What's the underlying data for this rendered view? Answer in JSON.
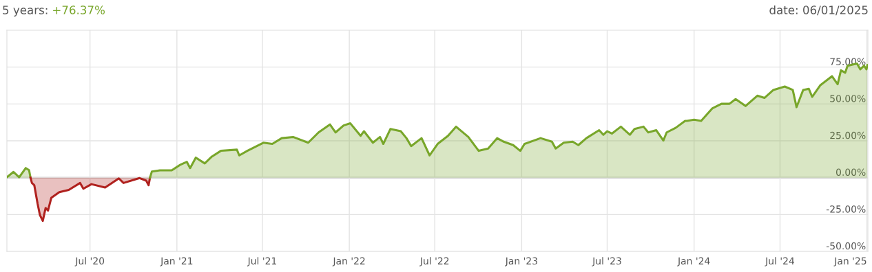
{
  "chart_data": {
    "type": "area",
    "title": "5 years:",
    "subtitle": "+76.37%",
    "annotations": [
      "date: 06/01/2025"
    ],
    "series": [
      {
        "color": "#78a62a",
        "x": [
          "2020-01-07",
          "2020-01-21",
          "2020-02-02",
          "2020-02-16",
          "2020-02-23",
          "2020-02-26"
        ],
        "values": [
          0.3,
          3.9,
          0.3,
          6.5,
          5.1,
          0
        ]
      },
      {
        "color": "#b0211e",
        "x": [
          "2020-02-26",
          "2020-02-29",
          "2020-03-05",
          "2020-03-12",
          "2020-03-17",
          "2020-03-23",
          "2020-03-29",
          "2020-04-03",
          "2020-04-10",
          "2020-04-27",
          "2020-05-17",
          "2020-06-10",
          "2020-06-17",
          "2020-07-04",
          "2020-08-02",
          "2020-08-31",
          "2020-09-10",
          "2020-10-14",
          "2020-10-28",
          "2020-11-02",
          "2020-11-05"
        ],
        "values": [
          0,
          -3.6,
          -5.1,
          -17.6,
          -25.4,
          -29.3,
          -20.6,
          -22.3,
          -13.7,
          -9.8,
          -8.3,
          -3.6,
          -7.5,
          -4.4,
          -6.7,
          -0.5,
          -3.6,
          -0.3,
          -2.0,
          -5.1,
          0
        ]
      },
      {
        "color": "#78a62a",
        "x": [
          "2020-11-05",
          "2020-11-09",
          "2020-11-26",
          "2020-12-21",
          "2021-01-09",
          "2021-01-22",
          "2021-01-29",
          "2021-02-10",
          "2021-03-01",
          "2021-03-16",
          "2021-04-04",
          "2021-05-08",
          "2021-05-13",
          "2021-05-30",
          "2021-07-03",
          "2021-07-22",
          "2021-08-11",
          "2021-09-04",
          "2021-10-06",
          "2021-10-28",
          "2021-11-21",
          "2021-12-03",
          "2021-12-20",
          "2022-01-03",
          "2022-01-25",
          "2022-02-01",
          "2022-02-20",
          "2022-03-07",
          "2022-03-14",
          "2022-03-29",
          "2022-04-20",
          "2022-05-02",
          "2022-05-12",
          "2022-06-03",
          "2022-06-20",
          "2022-07-07",
          "2022-07-29",
          "2022-08-15",
          "2022-09-10",
          "2022-10-02",
          "2022-10-22",
          "2022-11-10",
          "2022-11-24",
          "2022-12-14",
          "2022-12-29",
          "2023-01-07",
          "2023-02-10",
          "2023-03-06",
          "2023-03-14",
          "2023-03-31",
          "2023-04-19",
          "2023-05-01",
          "2023-05-18",
          "2023-06-14",
          "2023-06-23",
          "2023-07-01",
          "2023-07-11",
          "2023-07-30",
          "2023-08-18",
          "2023-08-28",
          "2023-09-16",
          "2023-09-26",
          "2023-10-13",
          "2023-10-28",
          "2023-11-04",
          "2023-11-23",
          "2023-12-13",
          "2023-12-17",
          "2024-01-01",
          "2024-01-16",
          "2024-02-09",
          "2024-02-28",
          "2024-03-16",
          "2024-03-29",
          "2024-04-19",
          "2024-05-14",
          "2024-05-29",
          "2024-06-17",
          "2024-07-11",
          "2024-07-28",
          "2024-08-05",
          "2024-08-19",
          "2024-08-31",
          "2024-09-07",
          "2024-09-24",
          "2024-10-19",
          "2024-10-31",
          "2024-11-07",
          "2024-11-16",
          "2024-11-21",
          "2024-12-11",
          "2024-12-18",
          "2024-12-26",
          "2024-12-31",
          "2025-01-02"
        ],
        "values": [
          0,
          4.2,
          5.0,
          5.0,
          8.9,
          10.7,
          6.5,
          13.6,
          9.7,
          14.3,
          18.2,
          19.0,
          15.1,
          18.2,
          23.7,
          22.9,
          26.8,
          27.6,
          23.7,
          30.7,
          36.1,
          30.7,
          35.4,
          36.9,
          28.4,
          31.5,
          23.7,
          27.6,
          22.9,
          33.0,
          31.5,
          26.8,
          21.4,
          26.8,
          15.1,
          22.9,
          28.4,
          34.6,
          27.6,
          18.2,
          19.8,
          26.8,
          24.4,
          22.1,
          18.2,
          22.9,
          26.8,
          24.4,
          19.8,
          23.7,
          24.4,
          22.1,
          26.8,
          32.2,
          29.1,
          31.5,
          29.9,
          34.6,
          29.1,
          33.0,
          34.6,
          30.7,
          32.2,
          25.2,
          30.7,
          33.8,
          38.5,
          38.5,
          39.3,
          38.5,
          47.1,
          50.1,
          50.1,
          53.3,
          48.6,
          55.6,
          54.1,
          59.5,
          61.8,
          59.5,
          47.8,
          59.5,
          60.3,
          54.8,
          62.6,
          68.8,
          63.4,
          72.8,
          71.2,
          75.9,
          77.4,
          73.5,
          75.9,
          73.5,
          76.4
        ]
      }
    ],
    "xlim": [
      "2020-01-07",
      "2025-01-03"
    ],
    "xticks": [
      {
        "value": "2020-07-01",
        "label": "Jul '20"
      },
      {
        "value": "2021-01-01",
        "label": "Jan '21"
      },
      {
        "value": "2021-07-01",
        "label": "Jul '21"
      },
      {
        "value": "2022-01-01",
        "label": "Jan '22"
      },
      {
        "value": "2022-07-01",
        "label": "Jul '22"
      },
      {
        "value": "2023-01-01",
        "label": "Jan '23"
      },
      {
        "value": "2023-07-01",
        "label": "Jul '23"
      },
      {
        "value": "2024-01-01",
        "label": "Jan '24"
      },
      {
        "value": "2024-07-01",
        "label": "Jul '24"
      },
      {
        "value": "2025-01-01",
        "label": "Jan '25"
      }
    ],
    "ylim": [
      -50,
      100
    ],
    "yticks": [
      {
        "value": -50,
        "label": "-50.00%"
      },
      {
        "value": -25,
        "label": "-25.00%"
      },
      {
        "value": 0,
        "label": "0.00%"
      },
      {
        "value": 25,
        "label": "25.00%"
      },
      {
        "value": 50,
        "label": "50.00%"
      },
      {
        "value": 75,
        "label": "75.00%"
      }
    ],
    "ref_lines": [
      {
        "axis": "y",
        "value": 0,
        "color": "#999999"
      }
    ],
    "grid": true,
    "legend": false
  }
}
